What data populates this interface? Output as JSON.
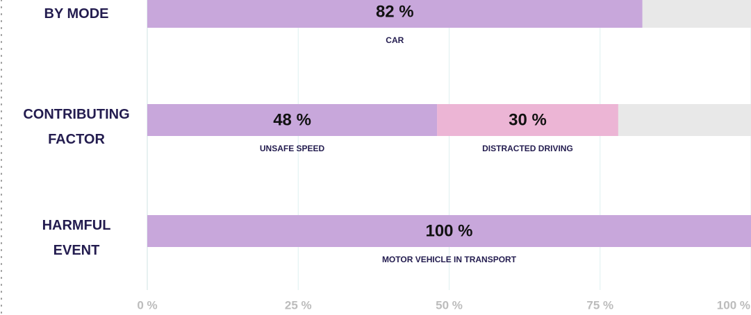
{
  "chart_data": {
    "type": "bar",
    "orientation": "horizontal",
    "stacked": true,
    "xlim": [
      0,
      100
    ],
    "xticks": [
      {
        "value": 0,
        "label": "0 %"
      },
      {
        "value": 25,
        "label": "25 %"
      },
      {
        "value": 50,
        "label": "50 %"
      },
      {
        "value": 75,
        "label": "75 %"
      },
      {
        "value": 100,
        "label": "100 %"
      }
    ],
    "grid": true,
    "track_color": "#e8e8e8",
    "rows": [
      {
        "label": "BY MODE",
        "segments": [
          {
            "name": "CAR",
            "value": 82,
            "value_label": "82 %",
            "color": "#c8a7db"
          }
        ]
      },
      {
        "label": "CONTRIBUTING FACTOR",
        "segments": [
          {
            "name": "UNSAFE SPEED",
            "value": 48,
            "value_label": "48 %",
            "color": "#c8a7db"
          },
          {
            "name": "DISTRACTED DRIVING",
            "value": 30,
            "value_label": "30 %",
            "color": "#ecb5d5"
          }
        ]
      },
      {
        "label": "HARMFUL EVENT",
        "segments": [
          {
            "name": "MOTOR VEHICLE IN TRANSPORT",
            "value": 100,
            "value_label": "100 %",
            "color": "#c8a7db"
          }
        ]
      }
    ]
  }
}
